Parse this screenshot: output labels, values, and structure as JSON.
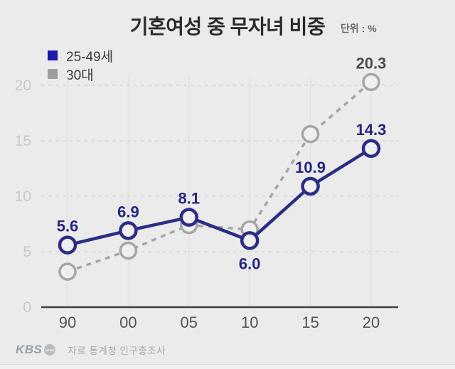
{
  "title": "기혼여성 중 무자녀 비중",
  "unit_label": "단위 : %",
  "legend": {
    "items": [
      {
        "label": "25-49세",
        "color": "#1c1aa8"
      },
      {
        "label": "30대",
        "color": "#9e9e9e"
      }
    ]
  },
  "footer": {
    "logo": "KBS",
    "logo_badge": "NEWS",
    "source": "자료 통계청 인구총조사"
  },
  "colors": {
    "background": "#ebebeb",
    "navy_line": "#2b2d85",
    "navy_label": "#23267f",
    "gray_line": "#a6a6a6",
    "gray_label": "#4d4d4d",
    "baseline": "#3f3f3f",
    "h_gridline": "#d8d8d8",
    "v_gridline": "#e2e2e2",
    "y_tick": "#c9c9c9",
    "x_tick": "#555555",
    "marker_fill": "#efefef"
  },
  "chart_data": {
    "type": "line",
    "title": "기혼여성 중 무자녀 비중",
    "xlabel": "",
    "ylabel": "단위 : %",
    "x": [
      "90",
      "00",
      "05",
      "10",
      "15",
      "20"
    ],
    "yticks": [
      0,
      5,
      10,
      15,
      20
    ],
    "ylim": [
      0,
      21
    ],
    "grid": true,
    "legend_position": "top-left",
    "series": [
      {
        "name": "25-49세",
        "style": "solid",
        "color": "#2b2d85",
        "label_color": "#23267f",
        "values": [
          5.6,
          6.9,
          8.1,
          6.0,
          10.9,
          14.3
        ],
        "labels": [
          "5.6",
          "6.9",
          "8.1",
          "6.0",
          "10.9",
          "14.3"
        ],
        "label_positions": [
          "above",
          "above",
          "above",
          "below",
          "above",
          "above"
        ]
      },
      {
        "name": "30대",
        "style": "dashed",
        "color": "#a6a6a6",
        "label_color": "#4d4d4d",
        "values": [
          3.2,
          5.1,
          7.4,
          7.0,
          15.6,
          20.3
        ],
        "labels": [
          null,
          null,
          null,
          null,
          null,
          "20.3"
        ],
        "label_positions": [
          null,
          null,
          null,
          null,
          null,
          "above"
        ]
      }
    ]
  }
}
